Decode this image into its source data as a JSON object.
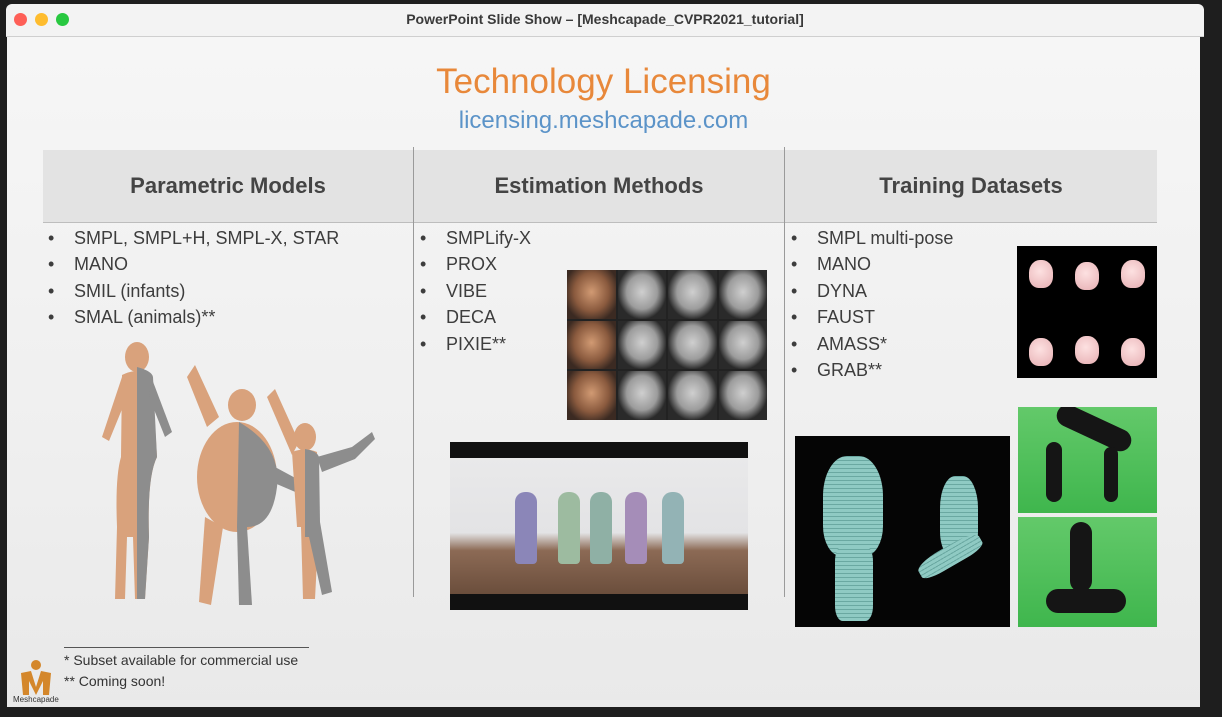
{
  "window": {
    "title": "PowerPoint Slide Show – [Meshcapade_CVPR2021_tutorial]"
  },
  "slide": {
    "title": "Technology Licensing",
    "url": "licensing.meshcapade.com",
    "columns": [
      {
        "heading": "Parametric Models",
        "items": [
          "SMPL, SMPL+H, SMPL-X, STAR",
          "MANO",
          "SMIL (infants)",
          "SMAL (animals)**"
        ]
      },
      {
        "heading": "Estimation Methods",
        "items": [
          "SMPLify-X",
          "PROX",
          "VIBE",
          "DECA",
          "PIXIE**"
        ]
      },
      {
        "heading": "Training Datasets",
        "items": [
          "SMPL multi-pose",
          "MANO",
          "DYNA",
          "FAUST",
          "AMASS*",
          "GRAB**"
        ]
      }
    ],
    "footnotes": [
      "* Subset available for commercial use",
      "** Coming soon!"
    ],
    "logo_label": "Meshcapade"
  },
  "colors": {
    "title": "#e8883a",
    "url": "#5b93c8",
    "mesh": "#8fcac3",
    "skin": "#d9a27c",
    "grey_body": "#8d8d8d"
  }
}
